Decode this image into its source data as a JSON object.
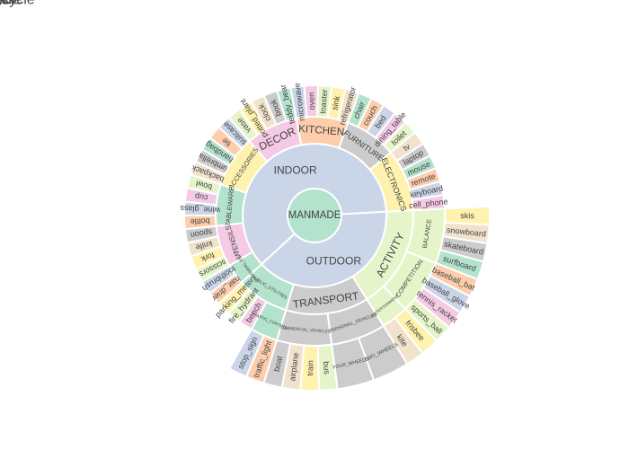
{
  "chart_data": {
    "type": "sunburst",
    "title": "",
    "palette": [
      "#b3e2cd",
      "#fdcdac",
      "#cbd5e8",
      "#f4cae4",
      "#e6f5c9",
      "#fff2ae",
      "#f1e2cc",
      "#cccccc"
    ],
    "root": {
      "name": "MANMADE",
      "children": [
        {
          "name": "INDOOR",
          "children": [
            {
              "name": "ELECTRONICS",
              "children": [
                {
                  "name": "tv",
                  "value": 1
                },
                {
                  "name": "laptop",
                  "value": 1
                },
                {
                  "name": "mouse",
                  "value": 1
                },
                {
                  "name": "remote",
                  "value": 1
                },
                {
                  "name": "keyboard",
                  "value": 1
                },
                {
                  "name": "cell_phone",
                  "value": 1
                }
              ]
            },
            {
              "name": "FURNITURE",
              "children": [
                {
                  "name": "chair",
                  "value": 1
                },
                {
                  "name": "couch",
                  "value": 1
                },
                {
                  "name": "bed",
                  "value": 1
                },
                {
                  "name": "dining_table",
                  "value": 1
                },
                {
                  "name": "toilet",
                  "value": 1
                }
              ]
            },
            {
              "name": "KITCHEN",
              "children": [
                {
                  "name": "microwave",
                  "value": 1
                },
                {
                  "name": "oven",
                  "value": 1
                },
                {
                  "name": "toaster",
                  "value": 1
                },
                {
                  "name": "sink",
                  "value": 1
                },
                {
                  "name": "refrigerator",
                  "value": 1
                }
              ]
            },
            {
              "name": "DECOR",
              "children": [
                {
                  "name": "vase",
                  "value": 1
                },
                {
                  "name": "potted_plant",
                  "value": 1
                },
                {
                  "name": "clock",
                  "value": 1
                },
                {
                  "name": "book",
                  "value": 1
                },
                {
                  "name": "teddy_bear",
                  "value": 1
                }
              ]
            },
            {
              "name": "ACCESSORIES",
              "children": [
                {
                  "name": "backpack",
                  "value": 1
                },
                {
                  "name": "umbrella",
                  "value": 1
                },
                {
                  "name": "handbag",
                  "value": 1
                },
                {
                  "name": "tie",
                  "value": 1
                },
                {
                  "name": "suitcase",
                  "value": 1
                }
              ]
            },
            {
              "name": "TABLEWARE",
              "children": [
                {
                  "name": "bottle",
                  "value": 1
                },
                {
                  "name": "wine_glass",
                  "value": 1
                },
                {
                  "name": "cup",
                  "value": 1
                },
                {
                  "name": "bowl",
                  "value": 1
                }
              ]
            },
            {
              "name": "UTENSILS",
              "children": [
                {
                  "name": "scissors",
                  "value": 1
                },
                {
                  "name": "fork",
                  "value": 1
                },
                {
                  "name": "knife",
                  "value": 1
                },
                {
                  "name": "spoon",
                  "value": 1
                }
              ]
            },
            {
              "name": "GROOMING_TOOLS",
              "children": [
                {
                  "name": "hair_drier",
                  "value": 1
                },
                {
                  "name": "toothbrush",
                  "value": 1
                }
              ]
            }
          ]
        },
        {
          "name": "OUTDOOR",
          "children": [
            {
              "name": "ACTIVITY",
              "children": [
                {
                  "name": "BALANCE",
                  "children": [
                    {
                      "name": "skis",
                      "value": 1
                    },
                    {
                      "name": "snowboard",
                      "value": 1
                    },
                    {
                      "name": "skateboard",
                      "value": 1
                    },
                    {
                      "name": "surfboard",
                      "value": 1
                    }
                  ]
                },
                {
                  "name": "COMPETITION",
                  "children": [
                    {
                      "name": "baseball_bat",
                      "value": 1
                    },
                    {
                      "name": "baseball_glove",
                      "value": 1
                    },
                    {
                      "name": "tennis_racket",
                      "value": 1
                    },
                    {
                      "name": "sports_ball",
                      "value": 1
                    }
                  ]
                },
                {
                  "name": "ENTERTAINMENT",
                  "children": [
                    {
                      "name": "frisbee",
                      "value": 1
                    },
                    {
                      "name": "kite",
                      "value": 1
                    }
                  ]
                }
              ]
            },
            {
              "name": "TRANSPORT",
              "children": [
                {
                  "name": "PERSONAL_VEHICLES",
                  "children": [
                    {
                      "name": "TWO_WHEELS",
                      "children": [
                        {
                          "name": "bicycle",
                          "value": 1
                        },
                        {
                          "name": "motorcycle",
                          "value": 1
                        }
                      ]
                    },
                    {
                      "name": "FOUR_WHEELS",
                      "children": [
                        {
                          "name": "car",
                          "value": 1
                        },
                        {
                          "name": "truck",
                          "value": 1
                        }
                      ]
                    }
                  ]
                },
                {
                  "name": "COMMERCIAL_VEHICLES",
                  "children": [
                    {
                      "name": "bus",
                      "value": 1
                    },
                    {
                      "name": "train",
                      "value": 1
                    },
                    {
                      "name": "airplane",
                      "value": 1
                    },
                    {
                      "name": "boat",
                      "value": 1
                    }
                  ]
                }
              ]
            },
            {
              "name": "PUBLIC_UTILITIES",
              "children": [
                {
                  "name": "TRAFFIC_CONTROL",
                  "children": [
                    {
                      "name": "traffic_light",
                      "value": 1
                    },
                    {
                      "name": "stop_sign",
                      "value": 1
                    }
                  ]
                },
                {
                  "name": "bench",
                  "value": 1
                },
                {
                  "name": "fire_hydrant",
                  "value": 1
                },
                {
                  "name": "parking_meter",
                  "value": 1
                }
              ]
            }
          ]
        }
      ]
    }
  }
}
